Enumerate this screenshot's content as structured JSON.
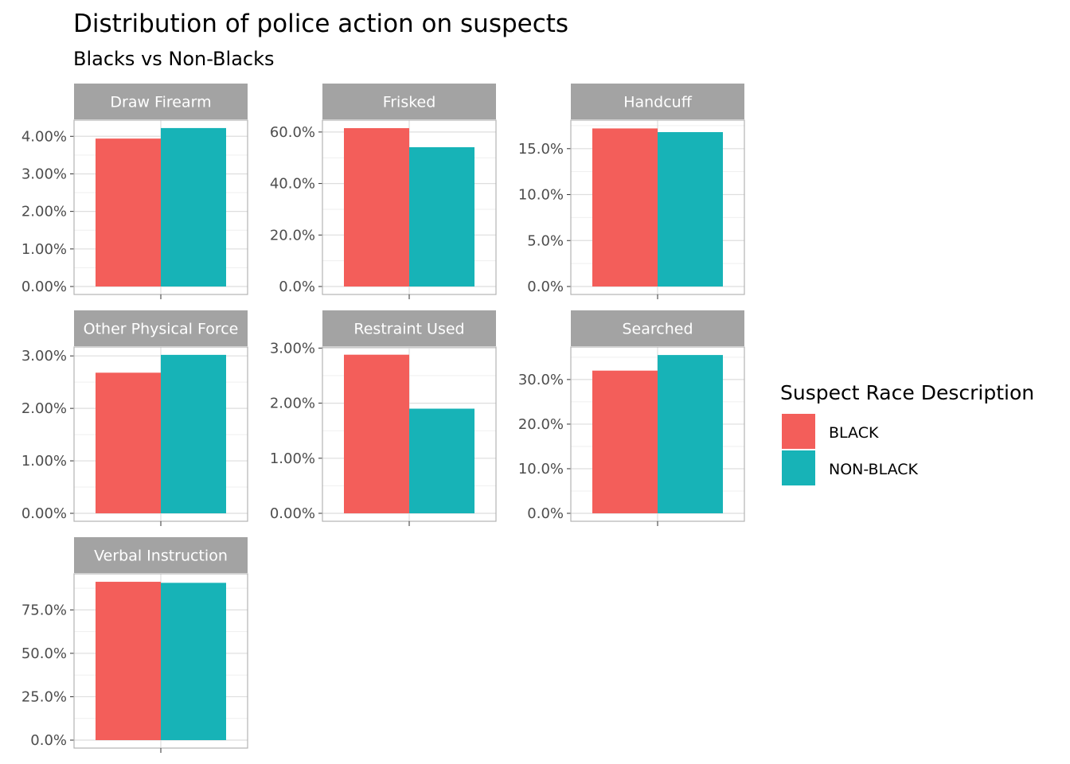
{
  "colors": {
    "black": "#F35E5A",
    "non_black": "#17B3B7",
    "strip": "#a3a3a3",
    "panel_border": "#b3b3b3",
    "grid_major": "#dedede",
    "grid_minor": "#efefef"
  },
  "chart_data": {
    "type": "bar",
    "title": "Distribution of police action on suspects",
    "subtitle": "Blacks vs Non-Blacks",
    "legend": {
      "title": "Suspect Race Description",
      "position": "right",
      "entries": [
        {
          "name": "BLACK",
          "color": "#F35E5A"
        },
        {
          "name": "NON-BLACK",
          "color": "#17B3B7"
        }
      ]
    },
    "grid": true,
    "facets": [
      {
        "label": "Draw Firearm",
        "values": [
          0.0394,
          0.0422
        ],
        "ylim": [
          0,
          0.0443
        ],
        "ticks": [
          {
            "v": 0.0,
            "label": "0.00%"
          },
          {
            "v": 0.01,
            "label": "1.00%"
          },
          {
            "v": 0.02,
            "label": "2.00%"
          },
          {
            "v": 0.03,
            "label": "3.00%"
          },
          {
            "v": 0.04,
            "label": "4.00%"
          }
        ]
      },
      {
        "label": "Frisked",
        "values": [
          0.615,
          0.541
        ],
        "ylim": [
          0,
          0.646
        ],
        "ticks": [
          {
            "v": 0.0,
            "label": "0.0%"
          },
          {
            "v": 0.2,
            "label": "20.0%"
          },
          {
            "v": 0.4,
            "label": "40.0%"
          },
          {
            "v": 0.6,
            "label": "60.0%"
          }
        ]
      },
      {
        "label": "Handcuff",
        "values": [
          0.172,
          0.168
        ],
        "ylim": [
          0,
          0.181
        ],
        "ticks": [
          {
            "v": 0.0,
            "label": "0.0%"
          },
          {
            "v": 0.05,
            "label": "5.0%"
          },
          {
            "v": 0.1,
            "label": "10.0%"
          },
          {
            "v": 0.15,
            "label": "15.0%"
          }
        ]
      },
      {
        "label": "Other Physical Force",
        "values": [
          0.0268,
          0.0302
        ],
        "ylim": [
          0,
          0.0317
        ],
        "ticks": [
          {
            "v": 0.0,
            "label": "0.00%"
          },
          {
            "v": 0.01,
            "label": "1.00%"
          },
          {
            "v": 0.02,
            "label": "2.00%"
          },
          {
            "v": 0.03,
            "label": "3.00%"
          }
        ]
      },
      {
        "label": "Restraint Used",
        "values": [
          0.0288,
          0.019
        ],
        "ylim": [
          0,
          0.0302
        ],
        "ticks": [
          {
            "v": 0.0,
            "label": "0.00%"
          },
          {
            "v": 0.01,
            "label": "1.00%"
          },
          {
            "v": 0.02,
            "label": "2.00%"
          },
          {
            "v": 0.03,
            "label": "3.00%"
          }
        ]
      },
      {
        "label": "Searched",
        "values": [
          0.32,
          0.355
        ],
        "ylim": [
          0,
          0.373
        ],
        "ticks": [
          {
            "v": 0.0,
            "label": "0.0%"
          },
          {
            "v": 0.1,
            "label": "10.0%"
          },
          {
            "v": 0.2,
            "label": "20.0%"
          },
          {
            "v": 0.3,
            "label": "30.0%"
          }
        ]
      },
      {
        "label": "Verbal Instruction",
        "values": [
          0.912,
          0.906
        ],
        "ylim": [
          0,
          0.958
        ],
        "ticks": [
          {
            "v": 0.0,
            "label": "0.0%"
          },
          {
            "v": 0.25,
            "label": "25.0%"
          },
          {
            "v": 0.5,
            "label": "50.0%"
          },
          {
            "v": 0.75,
            "label": "75.0%"
          }
        ]
      }
    ]
  }
}
